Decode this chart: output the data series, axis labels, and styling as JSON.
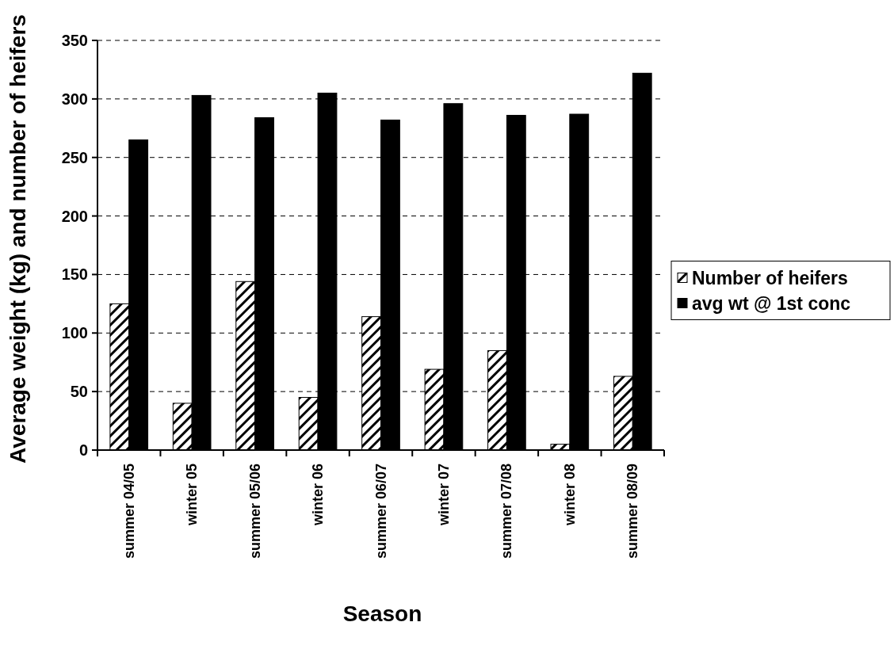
{
  "chart_data": {
    "type": "bar",
    "xlabel": "Season",
    "ylabel": "Average weight (kg) and number of heifers",
    "categories": [
      "summer 04/05",
      "winter 05",
      "summer 05/06",
      "winter 06",
      "summer 06/07",
      "winter 07",
      "summer 07/08",
      "winter 08",
      "summer 08/09"
    ],
    "series": [
      {
        "name": "Number of heifers",
        "color": "#000000",
        "values": [
          125,
          40,
          144,
          45,
          114,
          69,
          85,
          5,
          63
        ]
      },
      {
        "name": "avg wt @ 1st conc",
        "color": "#000000",
        "values": [
          265,
          303,
          284,
          305,
          282,
          296,
          286,
          287,
          322
        ]
      }
    ],
    "ylim": [
      0,
      350
    ],
    "yticks": [
      0,
      50,
      100,
      150,
      200,
      250,
      300,
      350
    ],
    "grid": "y",
    "legend": "right"
  }
}
